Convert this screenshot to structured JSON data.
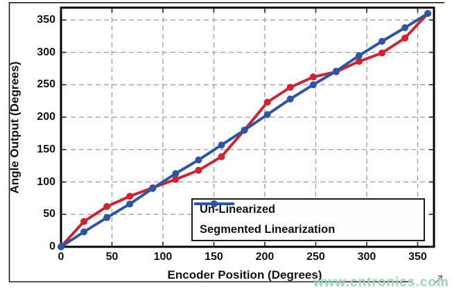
{
  "figure": {
    "watermark": "www.cntronics.com"
  },
  "legend": {
    "items": [
      {
        "label": "Un-Linearized",
        "color": "#cf2330"
      },
      {
        "label": "Segmented Linearization",
        "color": "#2d55a5"
      }
    ]
  },
  "chart_data": {
    "type": "line",
    "title": "",
    "xlabel": "Encoder Position (Degrees)",
    "ylabel": "Angle Output (Degrees)",
    "x": [
      0,
      22.5,
      45,
      67.5,
      90,
      112.5,
      135,
      157.5,
      180,
      202.5,
      225,
      247.5,
      270,
      292.5,
      315,
      337.5,
      360
    ],
    "series": [
      {
        "name": "Un-Linearized",
        "color": "#cf2330",
        "values": [
          0,
          39,
          62,
          78,
          91,
          104,
          118,
          139,
          180,
          223,
          246,
          262,
          270,
          286,
          299,
          322,
          360
        ]
      },
      {
        "name": "Segmented Linearization",
        "color": "#2d55a5",
        "values": [
          0,
          23,
          45,
          66,
          90,
          113,
          134,
          157,
          180,
          204,
          228,
          250,
          271,
          295,
          317,
          338,
          360
        ]
      }
    ],
    "x_ticks": [
      0,
      50,
      100,
      150,
      200,
      250,
      300,
      350
    ],
    "y_ticks": [
      0,
      50,
      100,
      150,
      200,
      250,
      300,
      350
    ],
    "xlim": [
      0,
      366
    ],
    "ylim": [
      0,
      369
    ],
    "grid": true,
    "legend_position": "lower-right"
  }
}
